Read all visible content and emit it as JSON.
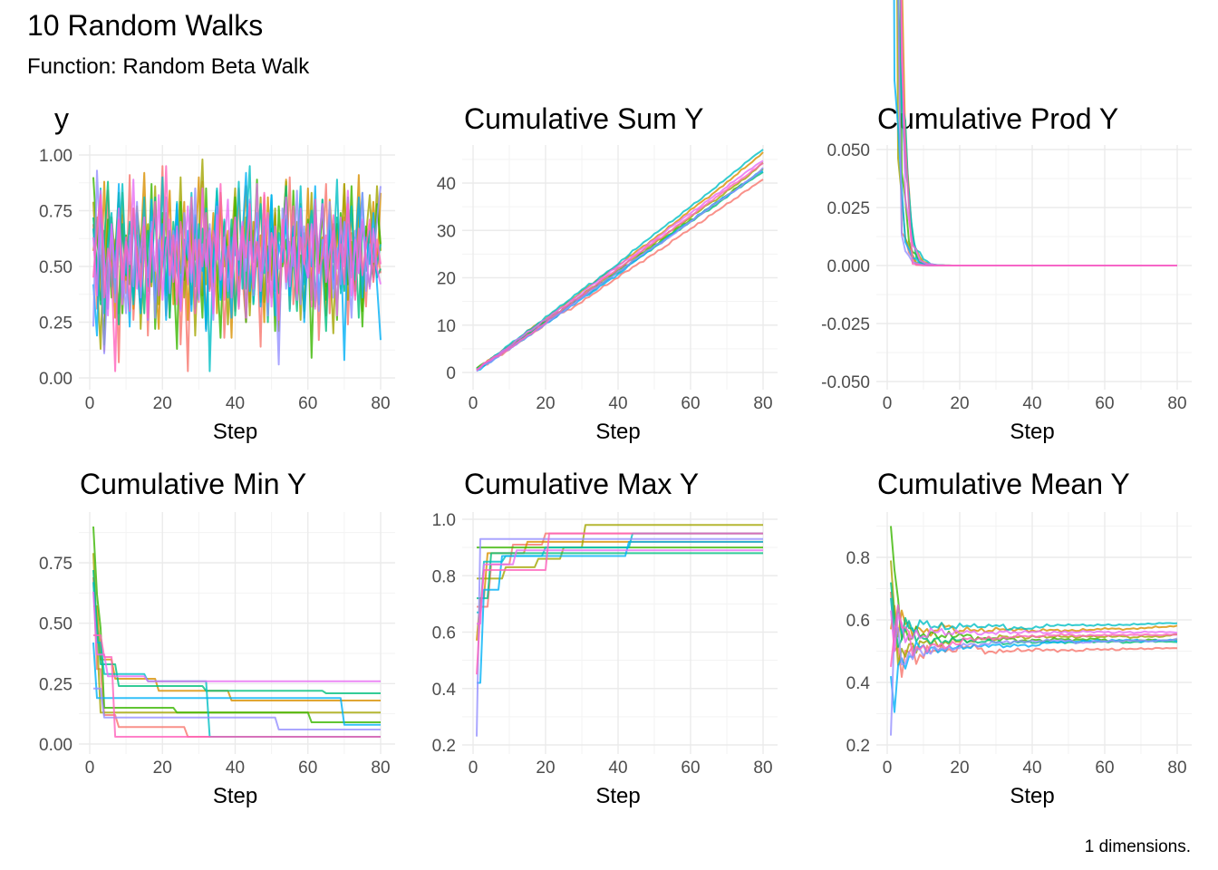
{
  "chart_data": {
    "type": "line",
    "title": "10 Random Walks",
    "subtitle": "Function: Random Beta Walk",
    "caption": "1 dimensions.",
    "grid": true,
    "legend": "none",
    "colors": [
      "#F8766D",
      "#D89000",
      "#A3A500",
      "#39B600",
      "#00BF7D",
      "#00BFC4",
      "#00B0F6",
      "#9590FF",
      "#E76BF3",
      "#FF62BC"
    ],
    "y_series": [
      [
        0.69,
        0.31,
        0.55,
        0.12,
        0.84,
        0.47,
        0.62,
        0.07,
        0.73,
        0.38,
        0.91,
        0.26,
        0.58,
        0.44,
        0.8,
        0.19,
        0.66,
        0.35,
        0.52,
        0.95,
        0.28,
        0.61,
        0.43,
        0.77,
        0.15,
        0.56,
        0.03,
        0.7,
        0.49,
        0.34,
        0.88,
        0.22,
        0.64,
        0.41,
        0.57,
        0.79,
        0.18,
        0.53,
        0.67,
        0.3,
        0.85,
        0.45,
        0.25,
        0.71,
        0.39,
        0.6,
        0.14,
        0.82,
        0.48,
        0.36,
        0.74,
        0.21,
        0.59,
        0.46,
        0.9,
        0.33,
        0.51,
        0.68,
        0.27,
        0.63,
        0.4,
        0.76,
        0.17,
        0.55,
        0.87,
        0.29,
        0.62,
        0.42,
        0.54,
        0.72,
        0.24,
        0.65,
        0.37,
        0.81,
        0.5,
        0.32,
        0.69,
        0.43,
        0.58,
        0.47
      ],
      [
        0.57,
        0.72,
        0.35,
        0.88,
        0.41,
        0.63,
        0.27,
        0.8,
        0.52,
        0.44,
        0.69,
        0.31,
        0.76,
        0.58,
        0.92,
        0.39,
        0.65,
        0.48,
        0.22,
        0.71,
        0.55,
        0.84,
        0.33,
        0.61,
        0.47,
        0.79,
        0.26,
        0.68,
        0.53,
        0.9,
        0.37,
        0.62,
        0.45,
        0.74,
        0.29,
        0.83,
        0.5,
        0.66,
        0.18,
        0.77,
        0.42,
        0.59,
        0.86,
        0.34,
        0.7,
        0.51,
        0.64,
        0.25,
        0.81,
        0.46,
        0.73,
        0.38,
        0.6,
        0.89,
        0.31,
        0.67,
        0.54,
        0.78,
        0.43,
        0.85,
        0.36,
        0.72,
        0.49,
        0.63,
        0.28,
        0.8,
        0.56,
        0.69,
        0.4,
        0.87,
        0.44,
        0.75,
        0.52,
        0.91,
        0.35,
        0.66,
        0.58,
        0.79,
        0.47,
        0.83
      ],
      [
        0.79,
        0.45,
        0.13,
        0.66,
        0.38,
        0.72,
        0.54,
        0.29,
        0.83,
        0.47,
        0.61,
        0.35,
        0.77,
        0.22,
        0.58,
        0.69,
        0.41,
        0.86,
        0.33,
        0.52,
        0.74,
        0.27,
        0.63,
        0.48,
        0.9,
        0.36,
        0.57,
        0.71,
        0.19,
        0.64,
        0.98,
        0.42,
        0.55,
        0.31,
        0.79,
        0.46,
        0.68,
        0.24,
        0.6,
        0.85,
        0.39,
        0.53,
        0.72,
        0.28,
        0.66,
        0.5,
        0.81,
        0.34,
        0.59,
        0.44,
        0.76,
        0.21,
        0.62,
        0.88,
        0.37,
        0.54,
        0.7,
        0.26,
        0.65,
        0.47,
        0.83,
        0.32,
        0.58,
        0.73,
        0.41,
        0.56,
        0.2,
        0.69,
        0.52,
        0.87,
        0.35,
        0.61,
        0.45,
        0.78,
        0.3,
        0.64,
        0.82,
        0.51,
        0.86,
        0.57
      ],
      [
        0.9,
        0.62,
        0.48,
        0.15,
        0.71,
        0.36,
        0.57,
        0.83,
        0.29,
        0.64,
        0.42,
        0.76,
        0.53,
        0.31,
        0.68,
        0.45,
        0.87,
        0.22,
        0.59,
        0.74,
        0.38,
        0.66,
        0.51,
        0.13,
        0.79,
        0.44,
        0.61,
        0.33,
        0.72,
        0.56,
        0.27,
        0.85,
        0.4,
        0.63,
        0.49,
        0.18,
        0.7,
        0.54,
        0.36,
        0.81,
        0.47,
        0.6,
        0.25,
        0.73,
        0.52,
        0.89,
        0.34,
        0.58,
        0.43,
        0.67,
        0.21,
        0.77,
        0.5,
        0.62,
        0.37,
        0.84,
        0.46,
        0.55,
        0.3,
        0.71,
        0.09,
        0.64,
        0.48,
        0.8,
        0.35,
        0.57,
        0.69,
        0.26,
        0.74,
        0.53,
        0.42,
        0.86,
        0.39,
        0.61,
        0.23,
        0.68,
        0.54,
        0.45,
        0.78,
        0.6
      ],
      [
        0.72,
        0.49,
        0.33,
        0.61,
        0.88,
        0.41,
        0.57,
        0.24,
        0.69,
        0.46,
        0.52,
        0.35,
        0.74,
        0.58,
        0.29,
        0.66,
        0.43,
        0.81,
        0.37,
        0.55,
        0.63,
        0.27,
        0.7,
        0.48,
        0.39,
        0.6,
        0.53,
        0.76,
        0.31,
        0.44,
        0.67,
        0.22,
        0.58,
        0.5,
        0.84,
        0.36,
        0.62,
        0.45,
        0.71,
        0.28,
        0.54,
        0.65,
        0.4,
        0.79,
        0.33,
        0.57,
        0.47,
        0.68,
        0.25,
        0.73,
        0.51,
        0.38,
        0.62,
        0.86,
        0.42,
        0.55,
        0.3,
        0.69,
        0.46,
        0.6,
        0.35,
        0.77,
        0.49,
        0.53,
        0.21,
        0.66,
        0.44,
        0.72,
        0.57,
        0.39,
        0.81,
        0.48,
        0.63,
        0.27,
        0.7,
        0.52,
        0.41,
        0.58,
        0.45,
        0.49
      ],
      [
        0.67,
        0.42,
        0.85,
        0.29,
        0.61,
        0.74,
        0.38,
        0.56,
        0.87,
        0.47,
        0.7,
        0.33,
        0.64,
        0.52,
        0.81,
        0.26,
        0.59,
        0.72,
        0.44,
        0.9,
        0.37,
        0.66,
        0.5,
        0.79,
        0.31,
        0.62,
        0.54,
        0.83,
        0.41,
        0.69,
        0.48,
        0.76,
        0.03,
        0.58,
        0.85,
        0.43,
        0.71,
        0.36,
        0.63,
        0.55,
        0.88,
        0.4,
        0.67,
        0.95,
        0.34,
        0.6,
        0.78,
        0.47,
        0.53,
        0.82,
        0.39,
        0.65,
        0.56,
        0.73,
        0.3,
        0.68,
        0.49,
        0.86,
        0.42,
        0.61,
        0.75,
        0.35,
        0.57,
        0.8,
        0.46,
        0.64,
        0.52,
        0.89,
        0.38,
        0.7,
        0.55,
        0.77,
        0.44,
        0.62,
        0.83,
        0.48,
        0.66,
        0.59,
        0.51,
        0.6
      ],
      [
        0.42,
        0.19,
        0.75,
        0.55,
        0.31,
        0.68,
        0.47,
        0.87,
        0.36,
        0.59,
        0.23,
        0.72,
        0.51,
        0.29,
        0.64,
        0.41,
        0.8,
        0.34,
        0.57,
        0.69,
        0.26,
        0.62,
        0.45,
        0.78,
        0.38,
        0.53,
        0.66,
        0.3,
        0.73,
        0.49,
        0.58,
        0.21,
        0.67,
        0.43,
        0.79,
        0.35,
        0.61,
        0.54,
        0.27,
        0.7,
        0.46,
        0.63,
        0.92,
        0.39,
        0.56,
        0.74,
        0.32,
        0.65,
        0.48,
        0.82,
        0.28,
        0.6,
        0.52,
        0.71,
        0.37,
        0.68,
        0.44,
        0.77,
        0.25,
        0.59,
        0.5,
        0.86,
        0.33,
        0.62,
        0.47,
        0.73,
        0.4,
        0.55,
        0.64,
        0.08,
        0.69,
        0.45,
        0.58,
        0.81,
        0.36,
        0.63,
        0.51,
        0.74,
        0.42,
        0.17
      ],
      [
        0.23,
        0.93,
        0.56,
        0.11,
        0.47,
        0.68,
        0.34,
        0.72,
        0.52,
        0.29,
        0.64,
        0.41,
        0.79,
        0.36,
        0.58,
        0.45,
        0.7,
        0.27,
        0.62,
        0.53,
        0.81,
        0.38,
        0.66,
        0.49,
        0.31,
        0.74,
        0.57,
        0.43,
        0.85,
        0.35,
        0.6,
        0.51,
        0.69,
        0.26,
        0.77,
        0.46,
        0.63,
        0.39,
        0.55,
        0.72,
        0.32,
        0.67,
        0.48,
        0.8,
        0.37,
        0.59,
        0.44,
        0.71,
        0.28,
        0.65,
        0.53,
        0.06,
        0.76,
        0.4,
        0.61,
        0.5,
        0.84,
        0.33,
        0.68,
        0.45,
        0.57,
        0.73,
        0.3,
        0.62,
        0.49,
        0.79,
        0.36,
        0.58,
        0.42,
        0.7,
        0.54,
        0.27,
        0.66,
        0.47,
        0.83,
        0.39,
        0.6,
        0.52,
        0.71,
        0.86
      ],
      [
        0.63,
        0.37,
        0.84,
        0.52,
        0.28,
        0.69,
        0.45,
        0.76,
        0.33,
        0.61,
        0.51,
        0.89,
        0.4,
        0.57,
        0.72,
        0.26,
        0.65,
        0.48,
        0.82,
        0.35,
        0.59,
        0.71,
        0.43,
        0.68,
        0.3,
        0.54,
        0.77,
        0.47,
        0.62,
        0.38,
        0.85,
        0.5,
        0.66,
        0.29,
        0.73,
        0.44,
        0.58,
        0.8,
        0.36,
        0.64,
        0.53,
        0.7,
        0.27,
        0.61,
        0.46,
        0.87,
        0.39,
        0.56,
        0.74,
        0.32,
        0.68,
        0.49,
        0.59,
        0.81,
        0.41,
        0.63,
        0.35,
        0.76,
        0.52,
        0.45,
        0.69,
        0.31,
        0.6,
        0.78,
        0.43,
        0.57,
        0.66,
        0.28,
        0.72,
        0.5,
        0.84,
        0.37,
        0.62,
        0.47,
        0.71,
        0.55,
        0.4,
        0.67,
        0.49,
        0.42
      ],
      [
        0.45,
        0.67,
        0.82,
        0.36,
        0.58,
        0.49,
        0.03,
        0.71,
        0.44,
        0.63,
        0.3,
        0.76,
        0.55,
        0.41,
        0.68,
        0.27,
        0.6,
        0.79,
        0.37,
        0.52,
        0.95,
        0.46,
        0.64,
        0.33,
        0.7,
        0.57,
        0.42,
        0.81,
        0.29,
        0.62,
        0.5,
        0.74,
        0.39,
        0.66,
        0.53,
        0.87,
        0.35,
        0.59,
        0.45,
        0.72,
        0.31,
        0.68,
        0.54,
        0.78,
        0.4,
        0.61,
        0.48,
        0.83,
        0.34,
        0.65,
        0.56,
        0.26,
        0.71,
        0.43,
        0.58,
        0.77,
        0.38,
        0.63,
        0.51,
        0.69,
        0.32,
        0.8,
        0.47,
        0.55,
        0.64,
        0.36,
        0.73,
        0.49,
        0.6,
        0.42,
        0.78,
        0.53,
        0.35,
        0.67,
        0.46,
        0.59,
        0.71,
        0.44,
        0.62,
        0.51
      ]
    ],
    "panels": [
      {
        "title": "y",
        "transform": "identity",
        "xlabel": "Step",
        "x_ticks": [
          "0",
          "20",
          "40",
          "60",
          "80"
        ],
        "y_ticks": [
          "0.00",
          "0.25",
          "0.50",
          "0.75",
          "1.00"
        ],
        "y_tick_values": [
          0,
          0.25,
          0.5,
          0.75,
          1
        ]
      },
      {
        "title": "Cumulative Sum Y",
        "transform": "cumsum",
        "xlabel": "Step",
        "x_ticks": [
          "0",
          "20",
          "40",
          "60",
          "80"
        ],
        "y_ticks": [
          "0",
          "10",
          "20",
          "30",
          "40"
        ],
        "y_tick_values": [
          0,
          10,
          20,
          30,
          40
        ]
      },
      {
        "title": "Cumulative Prod Y",
        "transform": "cumprod",
        "xlabel": "Step",
        "x_ticks": [
          "0",
          "20",
          "40",
          "60",
          "80"
        ],
        "y_ticks": [
          "-0.050",
          "-0.025",
          "0.000",
          "0.025",
          "0.050"
        ],
        "y_tick_values": [
          -0.05,
          -0.025,
          0,
          0.025,
          0.05
        ]
      },
      {
        "title": "Cumulative Min Y",
        "transform": "cummin",
        "xlabel": "Step",
        "x_ticks": [
          "0",
          "20",
          "40",
          "60",
          "80"
        ],
        "y_ticks": [
          "0.00",
          "0.25",
          "0.50",
          "0.75"
        ],
        "y_tick_values": [
          0,
          0.25,
          0.5,
          0.75
        ]
      },
      {
        "title": "Cumulative Max Y",
        "transform": "cummax",
        "xlabel": "Step",
        "x_ticks": [
          "0",
          "20",
          "40",
          "60",
          "80"
        ],
        "y_ticks": [
          "0.2",
          "0.4",
          "0.6",
          "0.8",
          "1.0"
        ],
        "y_tick_values": [
          0.2,
          0.4,
          0.6,
          0.8,
          1.0
        ]
      },
      {
        "title": "Cumulative Mean Y",
        "transform": "cummean",
        "xlabel": "Step",
        "x_ticks": [
          "0",
          "20",
          "40",
          "60",
          "80"
        ],
        "y_ticks": [
          "0.2",
          "0.4",
          "0.6",
          "0.8"
        ],
        "y_tick_values": [
          0.2,
          0.4,
          0.6,
          0.8
        ]
      }
    ]
  }
}
